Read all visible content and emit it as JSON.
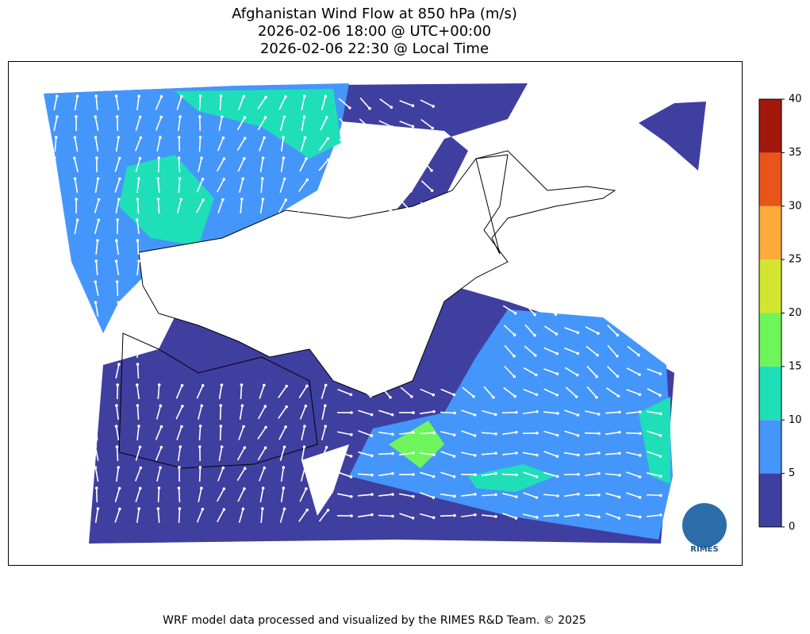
{
  "header": {
    "title_lines": [
      "Afghanistan Wind Flow at 850 hPa (m/s)",
      "2026-02-06 18:00 @ UTC+00:00",
      "2026-02-06 22:30 @ Local Time"
    ]
  },
  "colorbar": {
    "lim": [
      0,
      40
    ],
    "ticks": [
      0,
      5,
      10,
      15,
      20,
      25,
      30,
      35,
      40
    ],
    "colors": [
      "#3f3fa0",
      "#4496fb",
      "#1fdfb8",
      "#6ef55c",
      "#d2e62f",
      "#fdab3a",
      "#e9541b",
      "#a2180c"
    ]
  },
  "logo": {
    "text": "RIMES"
  },
  "footer": {
    "text": "WRF model data processed and visualized by the RIMES R&D Team. © 2025"
  }
}
